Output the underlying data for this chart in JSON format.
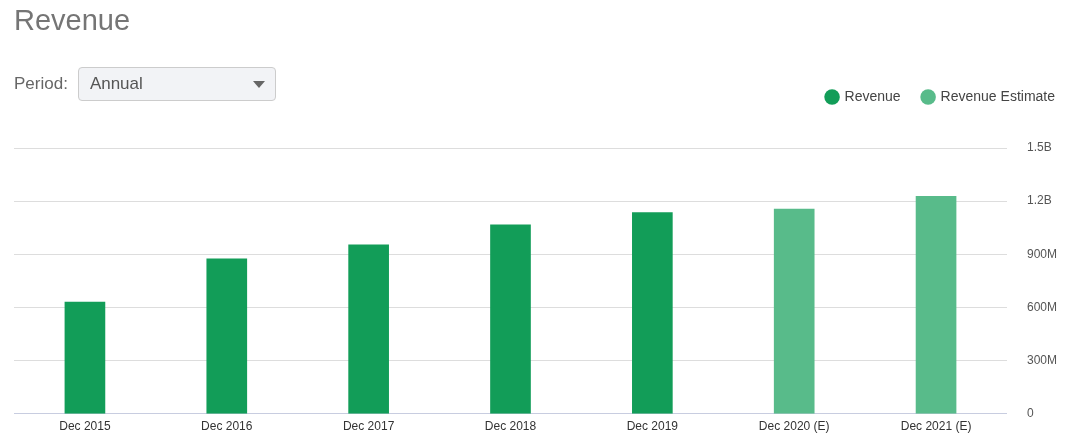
{
  "chart_data": {
    "type": "bar",
    "title": "Revenue",
    "annotations": [
      "Period:",
      "Annual"
    ],
    "categories": [
      "Dec 2015",
      "Dec 2016",
      "Dec 2017",
      "Dec 2018",
      "Dec 2019",
      "Dec 2020 (E)",
      "Dec 2021 (E)"
    ],
    "series": [
      {
        "name": "Revenue",
        "color": "#129d58",
        "values": [
          630000000,
          875000000,
          953000000,
          1067000000,
          1136000000,
          null,
          null
        ]
      },
      {
        "name": "Revenue Estimate",
        "color": "#58bb8a",
        "values": [
          null,
          null,
          null,
          null,
          null,
          1156000000,
          1227000000
        ]
      }
    ],
    "ylim": [
      0,
      1500000000
    ],
    "yticks": [
      {
        "value": 0,
        "label": "0"
      },
      {
        "value": 300000000,
        "label": "300M"
      },
      {
        "value": 600000000,
        "label": "600M"
      },
      {
        "value": 900000000,
        "label": "900M"
      },
      {
        "value": 1200000000,
        "label": "1.2B"
      },
      {
        "value": 1500000000,
        "label": "1.5B"
      }
    ],
    "grid": "y",
    "legend": "top right"
  }
}
